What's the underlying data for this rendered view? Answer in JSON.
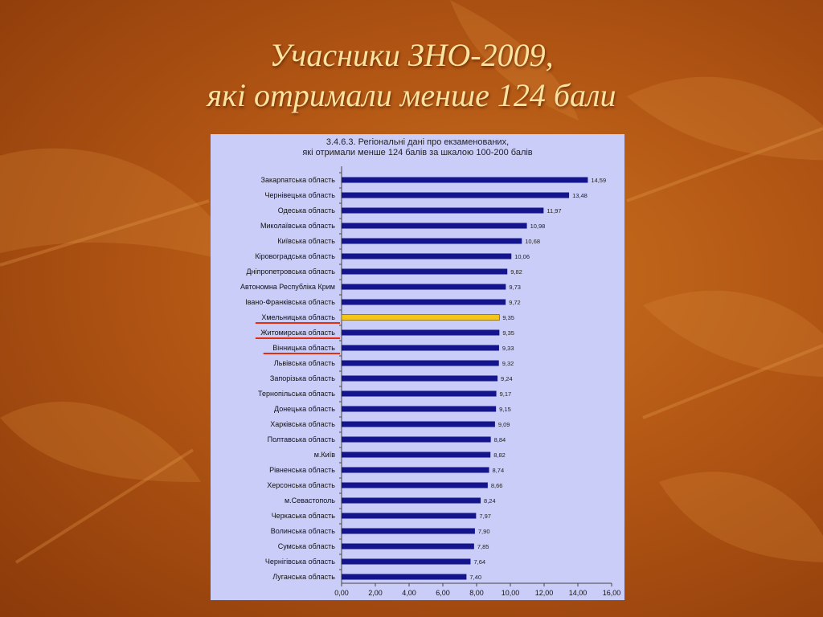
{
  "slide": {
    "title_line1": "Учасники ЗНО-2009,",
    "title_line2": "які отримали менше 124 бали"
  },
  "colors": {
    "bar": "#14148c",
    "highlight": "#f5c518",
    "underline": "#e03010",
    "panel": "#cbcdf9"
  },
  "chart_data": {
    "type": "bar",
    "orientation": "horizontal",
    "title_line1": "3.4.6.3. Регіональні дані про екзаменованих,",
    "title_line2": "які отримали менше 124 балів за шкалою 100-200 балів",
    "xlabel": "",
    "ylabel": "",
    "xlim": [
      0,
      16
    ],
    "x_ticks": [
      "0,00",
      "2,00",
      "4,00",
      "6,00",
      "8,00",
      "10,00",
      "12,00",
      "14,00",
      "16,00"
    ],
    "grid": false,
    "categories": [
      "Закарпатська область",
      "Чернівецька область",
      "Одеська область",
      "Миколаївська область",
      "Київська область",
      "Кіровоградська область",
      "Дніпропетровська область",
      "Автономна Республіка Крим",
      "Івано-Франківська область",
      "Хмельницька область",
      "Житомирська область",
      "Вінницька область",
      "Львівська область",
      "Запорізька область",
      "Тернопільська область",
      "Донецька область",
      "Харківська область",
      "Полтавська область",
      "м.Київ",
      "Рівненська область",
      "Херсонська область",
      "м.Севастополь",
      "Черкаська область",
      "Волинська область",
      "Сумська область",
      "Чернігівська область",
      "Луганська область"
    ],
    "values": [
      14.59,
      13.48,
      11.97,
      10.98,
      10.68,
      10.06,
      9.82,
      9.73,
      9.72,
      9.35,
      9.35,
      9.33,
      9.32,
      9.24,
      9.17,
      9.15,
      9.09,
      8.84,
      8.82,
      8.74,
      8.66,
      8.24,
      7.97,
      7.9,
      7.85,
      7.64,
      7.4
    ],
    "value_labels": [
      "14,59",
      "13,48",
      "11,97",
      "10,98",
      "10,68",
      "10,06",
      "9,82",
      "9,73",
      "9,72",
      "9,35",
      "9,35",
      "9,33",
      "9,32",
      "9,24",
      "9,17",
      "9,15",
      "9,09",
      "8,84",
      "8,82",
      "8,74",
      "8,66",
      "8,24",
      "7,97",
      "7,90",
      "7,85",
      "7,64",
      "7,40"
    ],
    "highlighted": [
      "Хмельницька область"
    ],
    "underlined": [
      "Хмельницька область",
      "Житомирська область",
      "Вінницька область"
    ]
  }
}
